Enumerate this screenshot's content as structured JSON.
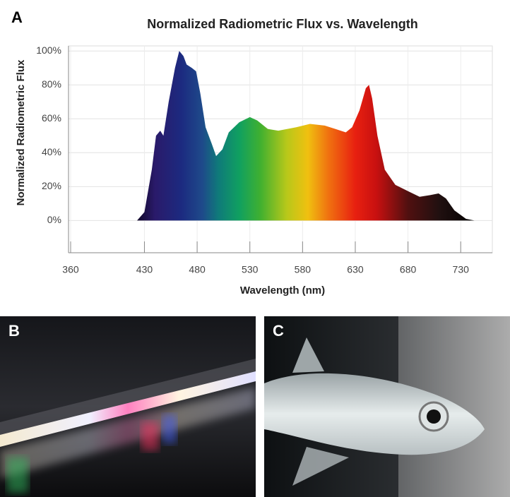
{
  "panel_labels": [
    "A",
    "B",
    "C"
  ],
  "chart_data": {
    "type": "area",
    "title": "Normalized Radiometric Flux vs. Wavelength",
    "xlabel": "Wavelength (nm)",
    "ylabel": "Normalized Radiometric Flux",
    "x": [
      423,
      430,
      437,
      441,
      445,
      448,
      453,
      459,
      463,
      467,
      470,
      475,
      479,
      483,
      488,
      494,
      498,
      504,
      510,
      520,
      530,
      537,
      547,
      557,
      574,
      587,
      601,
      611,
      621,
      627,
      634,
      640,
      643,
      646,
      651,
      658,
      668,
      681,
      691,
      701,
      709,
      716,
      724,
      735,
      743
    ],
    "values": [
      0,
      5,
      30,
      50,
      53,
      50,
      70,
      90,
      100,
      97,
      92,
      90,
      88,
      75,
      55,
      45,
      38,
      42,
      52,
      58,
      61,
      59,
      54,
      53,
      55,
      57,
      56,
      54,
      52,
      55,
      65,
      78,
      80,
      72,
      50,
      30,
      21,
      17,
      14,
      15,
      16,
      13,
      6,
      1,
      0
    ],
    "xlim": [
      358,
      760
    ],
    "ylim": [
      -19,
      103
    ],
    "xticks": [
      360,
      430,
      480,
      530,
      580,
      630,
      680,
      730
    ],
    "yticks": [
      {
        "value": 0,
        "label": "0%"
      },
      {
        "value": 20,
        "label": "20%"
      },
      {
        "value": 40,
        "label": "40%"
      },
      {
        "value": 60,
        "label": "60%"
      },
      {
        "value": 80,
        "label": "80%"
      },
      {
        "value": 100,
        "label": "100%"
      }
    ],
    "grid": true
  }
}
